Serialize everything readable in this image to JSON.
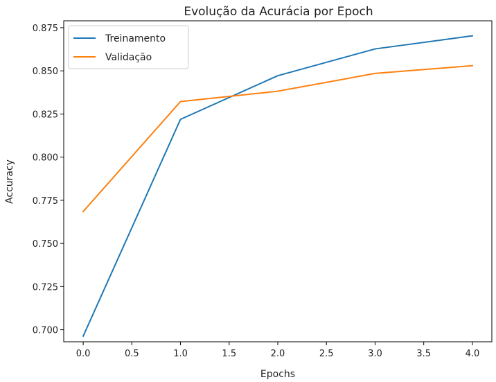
{
  "chart_data": {
    "type": "line",
    "title": "Evolução da Acurácia por Epoch",
    "xlabel": "Epochs",
    "ylabel": "Accuracy",
    "xlim": [
      -0.2,
      4.2
    ],
    "ylim": [
      0.693,
      0.879
    ],
    "x": [
      0,
      1,
      2,
      3,
      4
    ],
    "xticks": [
      0.0,
      0.5,
      1.0,
      1.5,
      2.0,
      2.5,
      3.0,
      3.5,
      4.0
    ],
    "xtick_labels": [
      "0.0",
      "0.5",
      "1.0",
      "1.5",
      "2.0",
      "2.5",
      "3.0",
      "3.5",
      "4.0"
    ],
    "yticks": [
      0.7,
      0.725,
      0.75,
      0.775,
      0.8,
      0.825,
      0.85,
      0.875
    ],
    "ytick_labels": [
      "0.700",
      "0.725",
      "0.750",
      "0.775",
      "0.800",
      "0.825",
      "0.850",
      "0.875"
    ],
    "grid": false,
    "legend_position": "top-left",
    "series": [
      {
        "name": "Treinamento",
        "color": "#1f77b4",
        "values": [
          0.6963,
          0.8219,
          0.8472,
          0.8627,
          0.8703
        ]
      },
      {
        "name": "Validação",
        "color": "#ff7f0e",
        "values": [
          0.7685,
          0.8322,
          0.8382,
          0.8485,
          0.853
        ]
      }
    ]
  }
}
